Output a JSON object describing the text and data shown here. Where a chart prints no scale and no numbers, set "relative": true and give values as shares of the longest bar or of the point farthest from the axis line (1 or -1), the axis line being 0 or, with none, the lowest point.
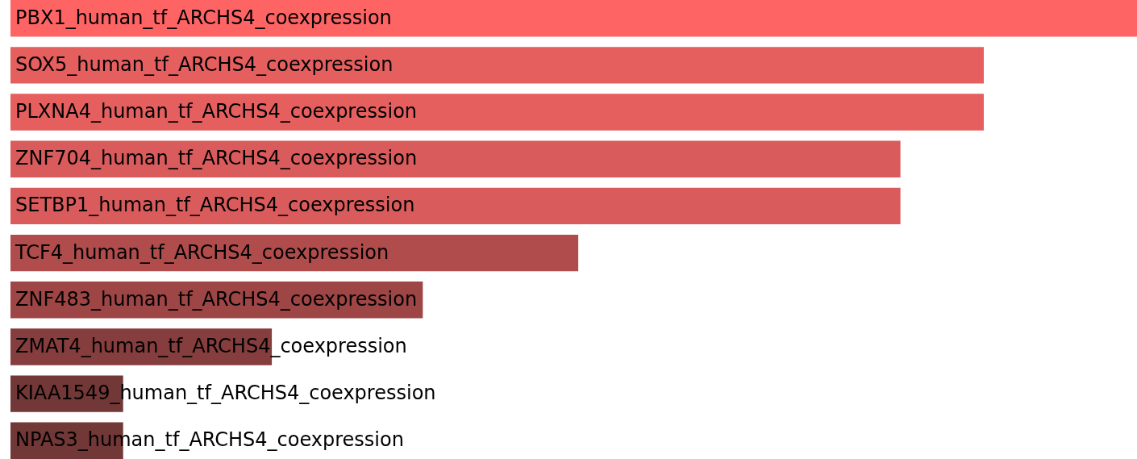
{
  "chart_data": {
    "type": "bar",
    "orientation": "horizontal",
    "relative": true,
    "categories": [
      "PBX1_human_tf_ARCHS4_coexpression",
      "SOX5_human_tf_ARCHS4_coexpression",
      "PLXNA4_human_tf_ARCHS4_coexpression",
      "ZNF704_human_tf_ARCHS4_coexpression",
      "SETBP1_human_tf_ARCHS4_coexpression",
      "TCF4_human_tf_ARCHS4_coexpression",
      "ZNF483_human_tf_ARCHS4_coexpression",
      "ZMAT4_human_tf_ARCHS4_coexpression",
      "KIAA1549_human_tf_ARCHS4_coexpression",
      "NPAS3_human_tf_ARCHS4_coexpression"
    ],
    "values": [
      1,
      0.864,
      0.864,
      0.79,
      0.79,
      0.504,
      0.366,
      0.232,
      0.1,
      0.1
    ],
    "colors": [
      "#fe6464",
      "#e55f5f",
      "#e55f5f",
      "#da5b5b",
      "#da5b5b",
      "#b04c4c",
      "#9e4545",
      "#853d3d",
      "#723737",
      "#723737"
    ]
  }
}
